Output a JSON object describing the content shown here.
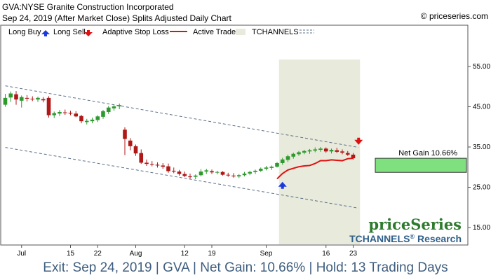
{
  "header": {
    "title": "GVA:NYSE Granite Construction Incorporated",
    "subtitle": "Sep 24, 2019 (After Market Close)  Splits Adjusted Daily Chart",
    "source": "© priceseries.com"
  },
  "legend": [
    {
      "label": "Long Buy",
      "icon": "blue-up-triangle"
    },
    {
      "label": "Long Sell",
      "icon": "red-down-triangle"
    },
    {
      "label": "Adaptive Stop Loss",
      "icon": "red-line"
    },
    {
      "label": "Active Trade",
      "icon": "gray-box"
    },
    {
      "label": "TCHANNELS",
      "icon": "dashed-line"
    }
  ],
  "watermark": {
    "brand": "priceSeries",
    "product": "TCHANNELS",
    "registered": "®",
    "product_suffix": "Research"
  },
  "annotation": {
    "net_gain": "Net Gain 10.66%"
  },
  "footer": "Exit: Sep 24, 2019 | GVA | Net Gain: 10.66% | Hold: 13 Trading Days",
  "colors": {
    "up": "#2e9a2e",
    "down": "#b01818",
    "stop": "#e01010",
    "channel": "#5a6f88",
    "trade_bg": "#e8eadb",
    "gain_box": "#7fe07f"
  },
  "chart_data": {
    "type": "candlestick",
    "ylim": [
      10,
      60
    ],
    "y_ticks": [
      15,
      25,
      35,
      45,
      55
    ],
    "y_tick_labels": [
      "15.00",
      "25.00",
      "35.00",
      "45.00",
      "55.00"
    ],
    "x_ticks": [
      {
        "label": "Jul",
        "i": 3
      },
      {
        "label": "15",
        "i": 12
      },
      {
        "label": "22",
        "i": 17
      },
      {
        "label": "Aug",
        "i": 24
      },
      {
        "label": "12",
        "i": 33
      },
      {
        "label": "19",
        "i": 38
      },
      {
        "label": "Sep",
        "i": 48
      },
      {
        "label": "16",
        "i": 59
      },
      {
        "label": "23",
        "i": 64
      }
    ],
    "candles": [
      {
        "o": 45.5,
        "h": 48.2,
        "l": 45.0,
        "c": 47.2
      },
      {
        "o": 47.3,
        "h": 48.8,
        "l": 46.2,
        "c": 48.3
      },
      {
        "o": 48.1,
        "h": 48.9,
        "l": 45.5,
        "c": 46.8
      },
      {
        "o": 46.5,
        "h": 47.8,
        "l": 44.8,
        "c": 47.4
      },
      {
        "o": 47.2,
        "h": 47.9,
        "l": 46.3,
        "c": 47.0
      },
      {
        "o": 47.0,
        "h": 47.6,
        "l": 46.4,
        "c": 46.9
      },
      {
        "o": 46.8,
        "h": 47.5,
        "l": 46.2,
        "c": 47.2
      },
      {
        "o": 46.9,
        "h": 47.4,
        "l": 46.1,
        "c": 46.6
      },
      {
        "o": 47.2,
        "h": 47.6,
        "l": 42.3,
        "c": 42.9
      },
      {
        "o": 42.9,
        "h": 43.8,
        "l": 42.2,
        "c": 43.4
      },
      {
        "o": 43.3,
        "h": 44.2,
        "l": 42.7,
        "c": 43.7
      },
      {
        "o": 43.6,
        "h": 44.3,
        "l": 43.0,
        "c": 43.5
      },
      {
        "o": 43.5,
        "h": 44.0,
        "l": 42.9,
        "c": 43.3
      },
      {
        "o": 43.3,
        "h": 43.9,
        "l": 42.4,
        "c": 42.6
      },
      {
        "o": 42.7,
        "h": 43.0,
        "l": 40.9,
        "c": 41.4
      },
      {
        "o": 41.2,
        "h": 42.0,
        "l": 40.6,
        "c": 41.5
      },
      {
        "o": 41.4,
        "h": 42.3,
        "l": 40.9,
        "c": 41.8
      },
      {
        "o": 41.7,
        "h": 42.9,
        "l": 41.2,
        "c": 42.6
      },
      {
        "o": 42.5,
        "h": 44.2,
        "l": 42.0,
        "c": 43.9
      },
      {
        "o": 43.7,
        "h": 45.2,
        "l": 43.2,
        "c": 44.8
      },
      {
        "o": 44.6,
        "h": 45.6,
        "l": 44.0,
        "c": 45.1
      },
      {
        "o": 45.1,
        "h": 45.8,
        "l": 44.4,
        "c": 45.4
      },
      {
        "o": 39.3,
        "h": 39.9,
        "l": 33.0,
        "c": 37.0
      },
      {
        "o": 36.6,
        "h": 37.2,
        "l": 34.2,
        "c": 35.2
      },
      {
        "o": 35.2,
        "h": 35.6,
        "l": 32.8,
        "c": 33.4
      },
      {
        "o": 33.5,
        "h": 34.4,
        "l": 30.8,
        "c": 31.1
      },
      {
        "o": 31.1,
        "h": 31.9,
        "l": 30.3,
        "c": 30.8
      },
      {
        "o": 30.8,
        "h": 31.5,
        "l": 30.2,
        "c": 30.7
      },
      {
        "o": 30.6,
        "h": 31.2,
        "l": 29.9,
        "c": 30.4
      },
      {
        "o": 30.4,
        "h": 31.0,
        "l": 29.6,
        "c": 30.1
      },
      {
        "o": 30.2,
        "h": 30.9,
        "l": 28.6,
        "c": 29.0
      },
      {
        "o": 29.1,
        "h": 29.9,
        "l": 28.5,
        "c": 28.9
      },
      {
        "o": 28.9,
        "h": 29.3,
        "l": 27.9,
        "c": 28.3
      },
      {
        "o": 28.3,
        "h": 28.9,
        "l": 27.5,
        "c": 27.8
      },
      {
        "o": 27.7,
        "h": 28.4,
        "l": 27.1,
        "c": 27.5
      },
      {
        "o": 27.6,
        "h": 28.2,
        "l": 27.0,
        "c": 27.9
      },
      {
        "o": 28.0,
        "h": 29.5,
        "l": 27.7,
        "c": 28.9
      },
      {
        "o": 28.9,
        "h": 29.6,
        "l": 28.3,
        "c": 29.2
      },
      {
        "o": 29.0,
        "h": 29.4,
        "l": 28.3,
        "c": 28.7
      },
      {
        "o": 28.7,
        "h": 29.1,
        "l": 28.2,
        "c": 28.8
      },
      {
        "o": 28.8,
        "h": 29.0,
        "l": 27.9,
        "c": 28.1
      },
      {
        "o": 28.1,
        "h": 28.6,
        "l": 27.6,
        "c": 28.0
      },
      {
        "o": 27.9,
        "h": 28.5,
        "l": 27.4,
        "c": 27.7
      },
      {
        "o": 27.7,
        "h": 28.3,
        "l": 27.3,
        "c": 28.0
      },
      {
        "o": 28.0,
        "h": 28.8,
        "l": 27.7,
        "c": 28.4
      },
      {
        "o": 28.4,
        "h": 29.1,
        "l": 28.0,
        "c": 28.8
      },
      {
        "o": 28.8,
        "h": 29.4,
        "l": 28.3,
        "c": 29.1
      },
      {
        "o": 29.1,
        "h": 29.9,
        "l": 28.8,
        "c": 29.6
      },
      {
        "o": 29.6,
        "h": 30.3,
        "l": 29.2,
        "c": 29.9
      },
      {
        "o": 29.8,
        "h": 30.4,
        "l": 29.3,
        "c": 30.1
      },
      {
        "o": 30.1,
        "h": 31.3,
        "l": 29.9,
        "c": 31.0
      },
      {
        "o": 31.0,
        "h": 32.3,
        "l": 30.6,
        "c": 31.9
      },
      {
        "o": 31.8,
        "h": 33.1,
        "l": 31.3,
        "c": 32.7
      },
      {
        "o": 32.6,
        "h": 33.6,
        "l": 32.1,
        "c": 33.3
      },
      {
        "o": 33.2,
        "h": 34.0,
        "l": 32.8,
        "c": 33.7
      },
      {
        "o": 33.6,
        "h": 34.3,
        "l": 33.2,
        "c": 34.0
      },
      {
        "o": 33.9,
        "h": 34.5,
        "l": 33.3,
        "c": 34.2
      },
      {
        "o": 34.1,
        "h": 34.9,
        "l": 33.7,
        "c": 34.4
      },
      {
        "o": 34.3,
        "h": 35.0,
        "l": 33.8,
        "c": 34.6
      },
      {
        "o": 34.6,
        "h": 34.9,
        "l": 33.6,
        "c": 33.9
      },
      {
        "o": 33.9,
        "h": 34.6,
        "l": 33.4,
        "c": 34.3
      },
      {
        "o": 34.2,
        "h": 34.8,
        "l": 33.5,
        "c": 33.8
      },
      {
        "o": 33.9,
        "h": 34.4,
        "l": 33.2,
        "c": 33.6
      },
      {
        "o": 33.5,
        "h": 34.0,
        "l": 32.8,
        "c": 33.1
      },
      {
        "o": 33.1,
        "h": 33.5,
        "l": 31.9,
        "c": 32.2
      }
    ],
    "stop_loss": [
      {
        "i": 50,
        "v": 27.1
      },
      {
        "i": 51,
        "v": 28.4
      },
      {
        "i": 52,
        "v": 29.3
      },
      {
        "i": 53,
        "v": 29.7
      },
      {
        "i": 54,
        "v": 30.1
      },
      {
        "i": 55,
        "v": 30.3
      },
      {
        "i": 56,
        "v": 30.4
      },
      {
        "i": 57,
        "v": 30.9
      },
      {
        "i": 58,
        "v": 31.6
      },
      {
        "i": 59,
        "v": 31.6
      },
      {
        "i": 60,
        "v": 31.8
      },
      {
        "i": 61,
        "v": 31.7
      },
      {
        "i": 62,
        "v": 31.6
      },
      {
        "i": 63,
        "v": 32.1
      },
      {
        "i": 64,
        "v": 32.2
      }
    ],
    "channel_upper": [
      {
        "i": 0,
        "v": 50.2
      },
      {
        "i": 65,
        "v": 34.9
      }
    ],
    "channel_lower": [
      {
        "i": 0,
        "v": 34.9
      },
      {
        "i": 65,
        "v": 19.8
      }
    ],
    "active_trade": {
      "start_i": 51,
      "end_i": 65
    },
    "long_buy": {
      "i": 51,
      "price": 25.3
    },
    "long_sell": {
      "i": 65,
      "price": 36.6
    },
    "gain_box": {
      "low": 28.7,
      "high": 32.2
    }
  }
}
